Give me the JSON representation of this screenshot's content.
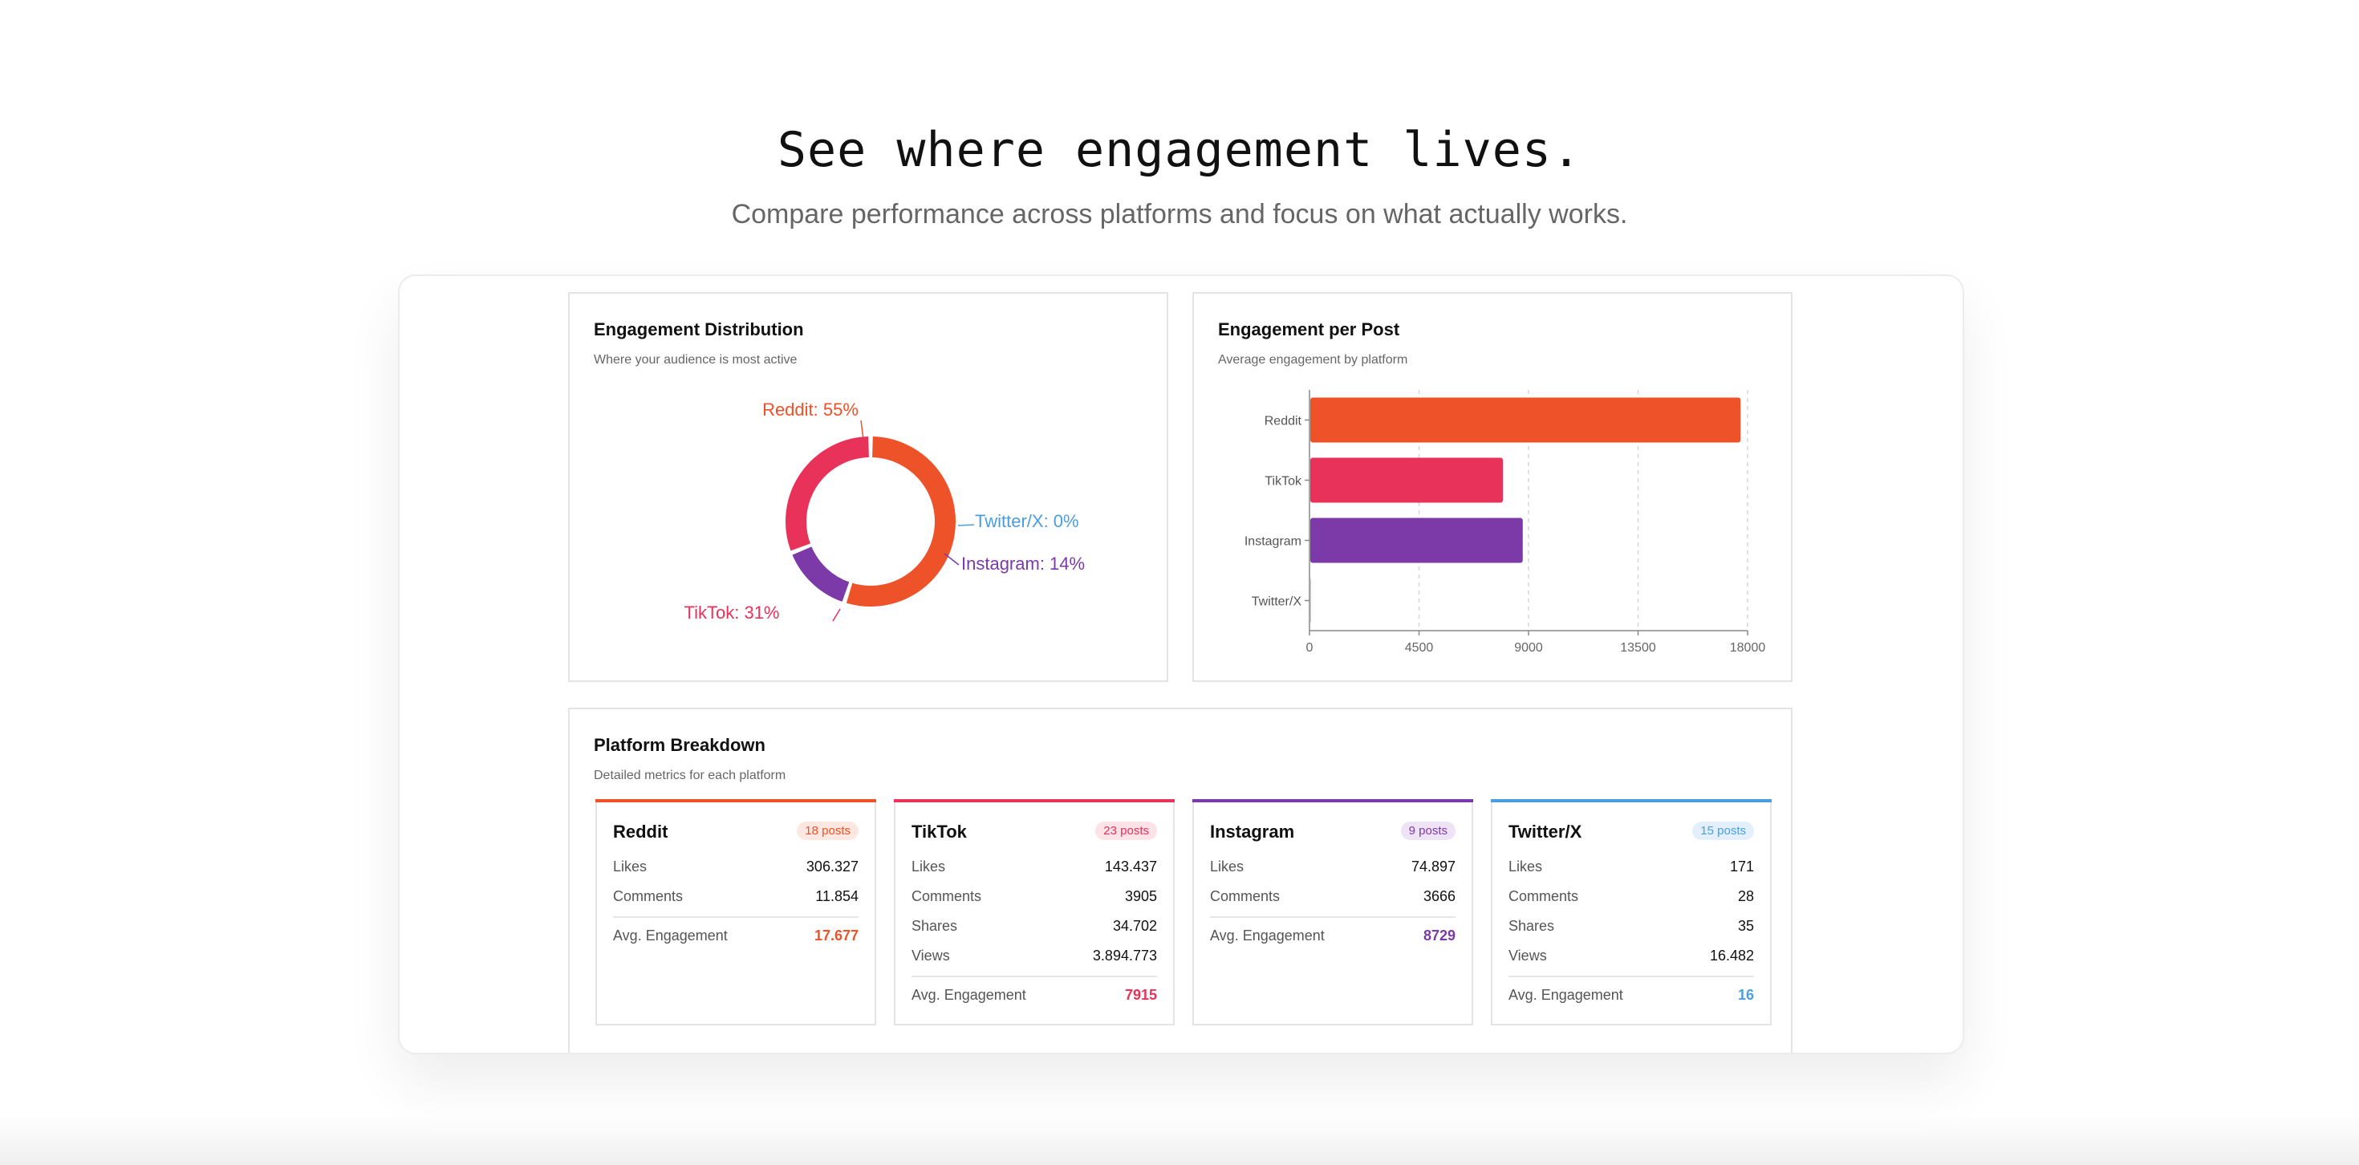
{
  "hero": {
    "title": "See where engagement lives.",
    "subtitle": "Compare performance across platforms and focus on what actually works."
  },
  "colors": {
    "reddit": "#ee5229",
    "tiktok": "#e8325a",
    "instagram": "#7b3aa8",
    "twitter": "#4a9ee0"
  },
  "distribution": {
    "title": "Engagement Distribution",
    "subtitle": "Where your audience is most active",
    "chart_data": {
      "type": "pie",
      "donut": true,
      "slices": [
        {
          "label": "Reddit: 55%",
          "name": "Reddit",
          "value": 55,
          "color": "#ee5229"
        },
        {
          "label": "Twitter/X: 0%",
          "name": "Twitter/X",
          "value": 0,
          "color": "#4a9ee0"
        },
        {
          "label": "Instagram: 14%",
          "name": "Instagram",
          "value": 14,
          "color": "#7b3aa8"
        },
        {
          "label": "TikTok: 31%",
          "name": "TikTok",
          "value": 31,
          "color": "#e8325a"
        }
      ]
    }
  },
  "per_post": {
    "title": "Engagement per Post",
    "subtitle": "Average engagement by platform",
    "chart_data": {
      "type": "bar",
      "orientation": "horizontal",
      "categories": [
        "Reddit",
        "TikTok",
        "Instagram",
        "Twitter/X"
      ],
      "values": [
        17677,
        7915,
        8729,
        16
      ],
      "colors": [
        "#ee5229",
        "#e8325a",
        "#7b3aa8",
        "#4a9ee0"
      ],
      "xlim": [
        0,
        18000
      ],
      "xticks": [
        "0",
        "4500",
        "9000",
        "13500",
        "18000"
      ],
      "grid": "vertical dashed"
    }
  },
  "breakdown": {
    "title": "Platform Breakdown",
    "subtitle": "Detailed metrics for each platform",
    "platforms": [
      {
        "name": "Reddit",
        "badge": "18 posts",
        "color": "#ee5229",
        "badge_bg": "#fde7e1",
        "metrics": [
          {
            "label": "Likes",
            "value": "306.327"
          },
          {
            "label": "Comments",
            "value": "11.854"
          }
        ],
        "avg_label": "Avg. Engagement",
        "avg_value": "17.677"
      },
      {
        "name": "TikTok",
        "badge": "23 posts",
        "color": "#e8325a",
        "badge_bg": "#fde2e8",
        "metrics": [
          {
            "label": "Likes",
            "value": "143.437"
          },
          {
            "label": "Comments",
            "value": "3905"
          },
          {
            "label": "Shares",
            "value": "34.702"
          },
          {
            "label": "Views",
            "value": "3.894.773"
          }
        ],
        "avg_label": "Avg. Engagement",
        "avg_value": "7915"
      },
      {
        "name": "Instagram",
        "badge": "9 posts",
        "color": "#7b3aa8",
        "badge_bg": "#efe4f6",
        "metrics": [
          {
            "label": "Likes",
            "value": "74.897"
          },
          {
            "label": "Comments",
            "value": "3666"
          }
        ],
        "avg_label": "Avg. Engagement",
        "avg_value": "8729"
      },
      {
        "name": "Twitter/X",
        "badge": "15 posts",
        "color": "#4a9ee0",
        "badge_bg": "#e3f0fb",
        "metrics": [
          {
            "label": "Likes",
            "value": "171"
          },
          {
            "label": "Comments",
            "value": "28"
          },
          {
            "label": "Shares",
            "value": "35"
          },
          {
            "label": "Views",
            "value": "16.482"
          }
        ],
        "avg_label": "Avg. Engagement",
        "avg_value": "16"
      }
    ]
  }
}
